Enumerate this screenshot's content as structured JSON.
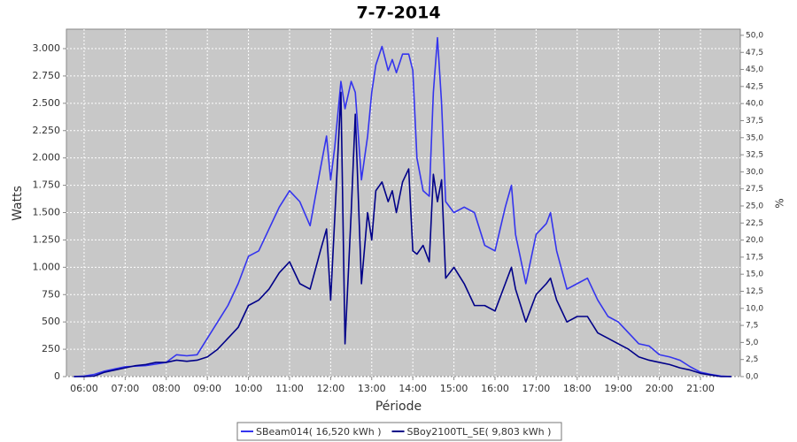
{
  "chart_data": {
    "type": "line",
    "title": "7-7-2014",
    "x_label": "Période",
    "y_label": "Watts",
    "y2_label": "%",
    "x": [
      5.75,
      6,
      6.25,
      6.5,
      6.75,
      7,
      7.25,
      7.5,
      7.75,
      8,
      8.25,
      8.5,
      8.75,
      9,
      9.25,
      9.5,
      9.75,
      10,
      10.25,
      10.5,
      10.75,
      11,
      11.25,
      11.5,
      11.75,
      11.9,
      12,
      12.1,
      12.25,
      12.35,
      12.5,
      12.6,
      12.75,
      12.9,
      13,
      13.1,
      13.25,
      13.4,
      13.5,
      13.6,
      13.75,
      13.9,
      14,
      14.1,
      14.25,
      14.4,
      14.5,
      14.6,
      14.7,
      14.8,
      15,
      15.25,
      15.5,
      15.75,
      16,
      16.25,
      16.4,
      16.5,
      16.75,
      17,
      17.25,
      17.35,
      17.5,
      17.75,
      18,
      18.25,
      18.5,
      18.75,
      19,
      19.25,
      19.5,
      19.75,
      20,
      20.25,
      20.5,
      20.75,
      21,
      21.25,
      21.5,
      21.75
    ],
    "series": [
      {
        "name": "SBeam014( 16,520 kWh )",
        "color": "#3434ee",
        "values": [
          0,
          5,
          20,
          50,
          70,
          90,
          95,
          100,
          115,
          130,
          200,
          190,
          200,
          350,
          500,
          650,
          850,
          1100,
          1150,
          1350,
          1550,
          1700,
          1600,
          1380,
          1900,
          2200,
          1800,
          2100,
          2700,
          2450,
          2700,
          2600,
          1800,
          2200,
          2600,
          2850,
          3020,
          2800,
          2900,
          2780,
          2950,
          2950,
          2800,
          2000,
          1700,
          1650,
          2600,
          3100,
          2500,
          1600,
          1500,
          1550,
          1500,
          1200,
          1150,
          1550,
          1750,
          1300,
          850,
          1300,
          1400,
          1500,
          1150,
          800,
          850,
          900,
          700,
          550,
          500,
          400,
          300,
          280,
          200,
          180,
          150,
          90,
          40,
          20,
          5,
          0
        ]
      },
      {
        "name": "SBoy2100TL_SE( 9,803 kWh )",
        "color": "#000088",
        "values": [
          0,
          0,
          5,
          40,
          60,
          80,
          100,
          110,
          130,
          130,
          150,
          140,
          150,
          180,
          250,
          350,
          450,
          650,
          700,
          800,
          950,
          1050,
          850,
          800,
          1150,
          1350,
          700,
          1450,
          2600,
          300,
          1500,
          2400,
          850,
          1500,
          1250,
          1700,
          1780,
          1600,
          1700,
          1500,
          1780,
          1900,
          1150,
          1120,
          1200,
          1050,
          1850,
          1600,
          1800,
          900,
          1000,
          850,
          650,
          650,
          600,
          850,
          1000,
          800,
          500,
          750,
          850,
          900,
          700,
          500,
          550,
          550,
          400,
          350,
          300,
          250,
          180,
          150,
          130,
          110,
          80,
          60,
          30,
          15,
          0,
          0
        ]
      }
    ],
    "xlim": [
      5.57,
      21.97
    ],
    "xticks": [
      {
        "value": 6,
        "label": "06:00"
      },
      {
        "value": 7,
        "label": "07:00"
      },
      {
        "value": 8,
        "label": "08:00"
      },
      {
        "value": 9,
        "label": "09:00"
      },
      {
        "value": 10,
        "label": "10:00"
      },
      {
        "value": 11,
        "label": "11:00"
      },
      {
        "value": 12,
        "label": "12:00"
      },
      {
        "value": 13,
        "label": "13:00"
      },
      {
        "value": 14,
        "label": "14:00"
      },
      {
        "value": 15,
        "label": "15:00"
      },
      {
        "value": 16,
        "label": "16:00"
      },
      {
        "value": 17,
        "label": "17:00"
      },
      {
        "value": 18,
        "label": "18:00"
      },
      {
        "value": 19,
        "label": "19:00"
      },
      {
        "value": 20,
        "label": "20:00"
      },
      {
        "value": 21,
        "label": "21:00"
      }
    ],
    "ylim": [
      0,
      3178
    ],
    "yticks": [
      0,
      250,
      500,
      750,
      {
        "value": 1000,
        "label": "1.000"
      },
      {
        "value": 1250,
        "label": "1.250"
      },
      {
        "value": 1500,
        "label": "1.500"
      },
      {
        "value": 1750,
        "label": "1.750"
      },
      {
        "value": 2000,
        "label": "2.000"
      },
      {
        "value": 2250,
        "label": "2.250"
      },
      {
        "value": 2500,
        "label": "2.500"
      },
      {
        "value": 2750,
        "label": "2.750"
      },
      {
        "value": 3000,
        "label": "3.000"
      }
    ],
    "y2lim": [
      0,
      50.9
    ],
    "y2ticks": [
      {
        "value": 0,
        "label": "0,0"
      },
      {
        "value": 2.5,
        "label": "2,5"
      },
      {
        "value": 5,
        "label": "5,0"
      },
      {
        "value": 7.5,
        "label": "7,5"
      },
      {
        "value": 10,
        "label": "10,0"
      },
      {
        "value": 12.5,
        "label": "12,5"
      },
      {
        "value": 15,
        "label": "15,0"
      },
      {
        "value": 17.5,
        "label": "17,5"
      },
      {
        "value": 20,
        "label": "20,0"
      },
      {
        "value": 22.5,
        "label": "22,5"
      },
      {
        "value": 25,
        "label": "25,0"
      },
      {
        "value": 27.5,
        "label": "27,5"
      },
      {
        "value": 30,
        "label": "30,0"
      },
      {
        "value": 32.5,
        "label": "32,5"
      },
      {
        "value": 35,
        "label": "35,0"
      },
      {
        "value": 37.5,
        "label": "37,5"
      },
      {
        "value": 40,
        "label": "40,0"
      },
      {
        "value": 42.5,
        "label": "42,5"
      },
      {
        "value": 45,
        "label": "45,0"
      },
      {
        "value": 47.5,
        "label": "47,5"
      },
      {
        "value": 50,
        "label": "50,0"
      }
    ],
    "grid": true,
    "legend": "bottom"
  }
}
